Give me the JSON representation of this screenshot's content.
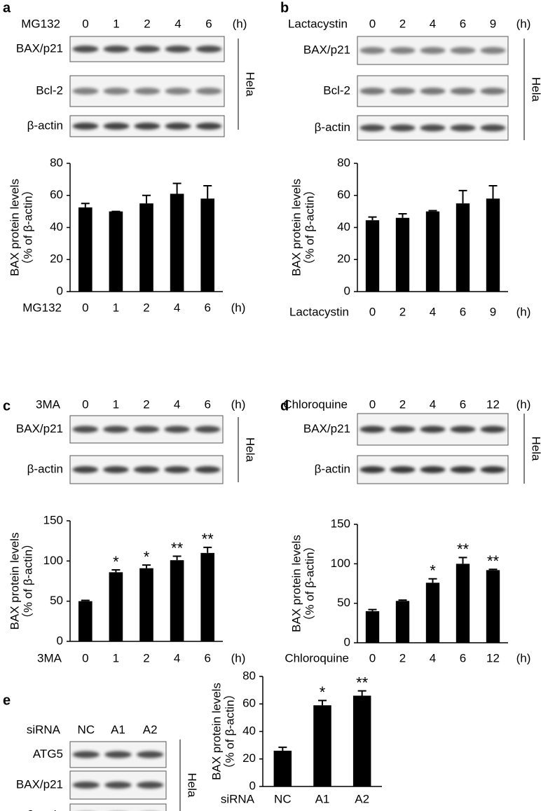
{
  "panels": [
    {
      "letter": "a",
      "treatment": "MG132",
      "lanes": [
        "0",
        "1",
        "2",
        "4",
        "6"
      ],
      "unit": "(h)",
      "rows": [
        "BAX/p21",
        "Bcl-2",
        "β-actin"
      ],
      "cell": "Hela"
    },
    {
      "letter": "b",
      "treatment": "Lactacystin",
      "lanes": [
        "0",
        "2",
        "4",
        "6",
        "9"
      ],
      "unit": "(h)",
      "rows": [
        "BAX/p21",
        "Bcl-2",
        "β-actin"
      ],
      "cell": "Hela"
    },
    {
      "letter": "c",
      "treatment": "3MA",
      "lanes": [
        "0",
        "1",
        "2",
        "4",
        "6"
      ],
      "unit": "(h)",
      "rows": [
        "BAX/p21",
        "β-actin"
      ],
      "cell": "Hela"
    },
    {
      "letter": "d",
      "treatment": "Chloroquine",
      "lanes": [
        "0",
        "2",
        "4",
        "6",
        "12"
      ],
      "unit": "(h)",
      "rows": [
        "BAX/p21",
        "β-actin"
      ],
      "cell": "Hela"
    },
    {
      "letter": "e",
      "treatment": "siRNA",
      "lanes": [
        "NC",
        "A1",
        "A2"
      ],
      "rows": [
        "ATG5",
        "BAX/p21",
        "β-actin"
      ],
      "cell": "Hela"
    }
  ],
  "chart_data": [
    {
      "type": "bar",
      "y_label": "BAX protein levels",
      "y_label_2": "（% of β-actin）",
      "x_label": "MG132",
      "x_unit": "(h)",
      "categories": [
        "0",
        "1",
        "2",
        "4",
        "6"
      ],
      "values": [
        52.5,
        50,
        55,
        61,
        58
      ],
      "errors": [
        2.5,
        0,
        5,
        6.5,
        8
      ],
      "color": "#000000",
      "ylim": [
        0,
        80
      ],
      "yticks": [
        0,
        20,
        40,
        60,
        80
      ]
    },
    {
      "type": "bar",
      "y_label": "BAX protein levels",
      "y_label_2": "（% of β-actin）",
      "x_label": "Lactacystin",
      "x_unit": "(h)",
      "categories": [
        "0",
        "2",
        "4",
        "6",
        "9"
      ],
      "values": [
        44.5,
        46,
        50,
        55,
        58
      ],
      "errors": [
        2,
        2.5,
        0.5,
        8,
        8
      ],
      "color": "#000000",
      "ylim": [
        0,
        80
      ],
      "yticks": [
        0,
        20,
        40,
        60,
        80
      ]
    },
    {
      "type": "bar",
      "y_label": "BAX protein levels",
      "y_label_2": "（% of β-actin）",
      "x_label": "3MA",
      "x_unit": "(h)",
      "categories": [
        "0",
        "1",
        "2",
        "4",
        "6"
      ],
      "values": [
        50,
        86,
        91,
        101,
        110
      ],
      "errors": [
        1,
        3,
        4,
        5,
        7
      ],
      "significance": [
        null,
        "*",
        "*",
        "**",
        "**"
      ],
      "color": "#000000",
      "ylim": [
        0,
        150
      ],
      "yticks": [
        0,
        50,
        100,
        150
      ]
    },
    {
      "type": "bar",
      "y_label": "BAX protein levels",
      "y_label_2": "（% of β-actin）",
      "x_label": "Chloroquine",
      "x_unit": "(h)",
      "categories": [
        "0",
        "2",
        "4",
        "6",
        "12"
      ],
      "values": [
        40,
        53,
        76,
        100,
        92
      ],
      "errors": [
        2,
        1,
        5,
        8,
        1
      ],
      "significance": [
        null,
        null,
        "*",
        "**",
        "**"
      ],
      "color": "#000000",
      "ylim": [
        0,
        150
      ],
      "yticks": [
        0,
        50,
        100,
        150
      ]
    },
    {
      "type": "bar",
      "y_label": "BAX protein levels",
      "y_label_2": "（% of β-actin）",
      "x_label": "siRNA",
      "categories": [
        "NC",
        "A1",
        "A2"
      ],
      "values": [
        26,
        59,
        66
      ],
      "errors": [
        2.5,
        3.5,
        3.5
      ],
      "significance": [
        null,
        "*",
        "**"
      ],
      "color": "#000000",
      "ylim": [
        0,
        80
      ],
      "yticks": [
        0,
        20,
        40,
        60,
        80
      ]
    }
  ]
}
